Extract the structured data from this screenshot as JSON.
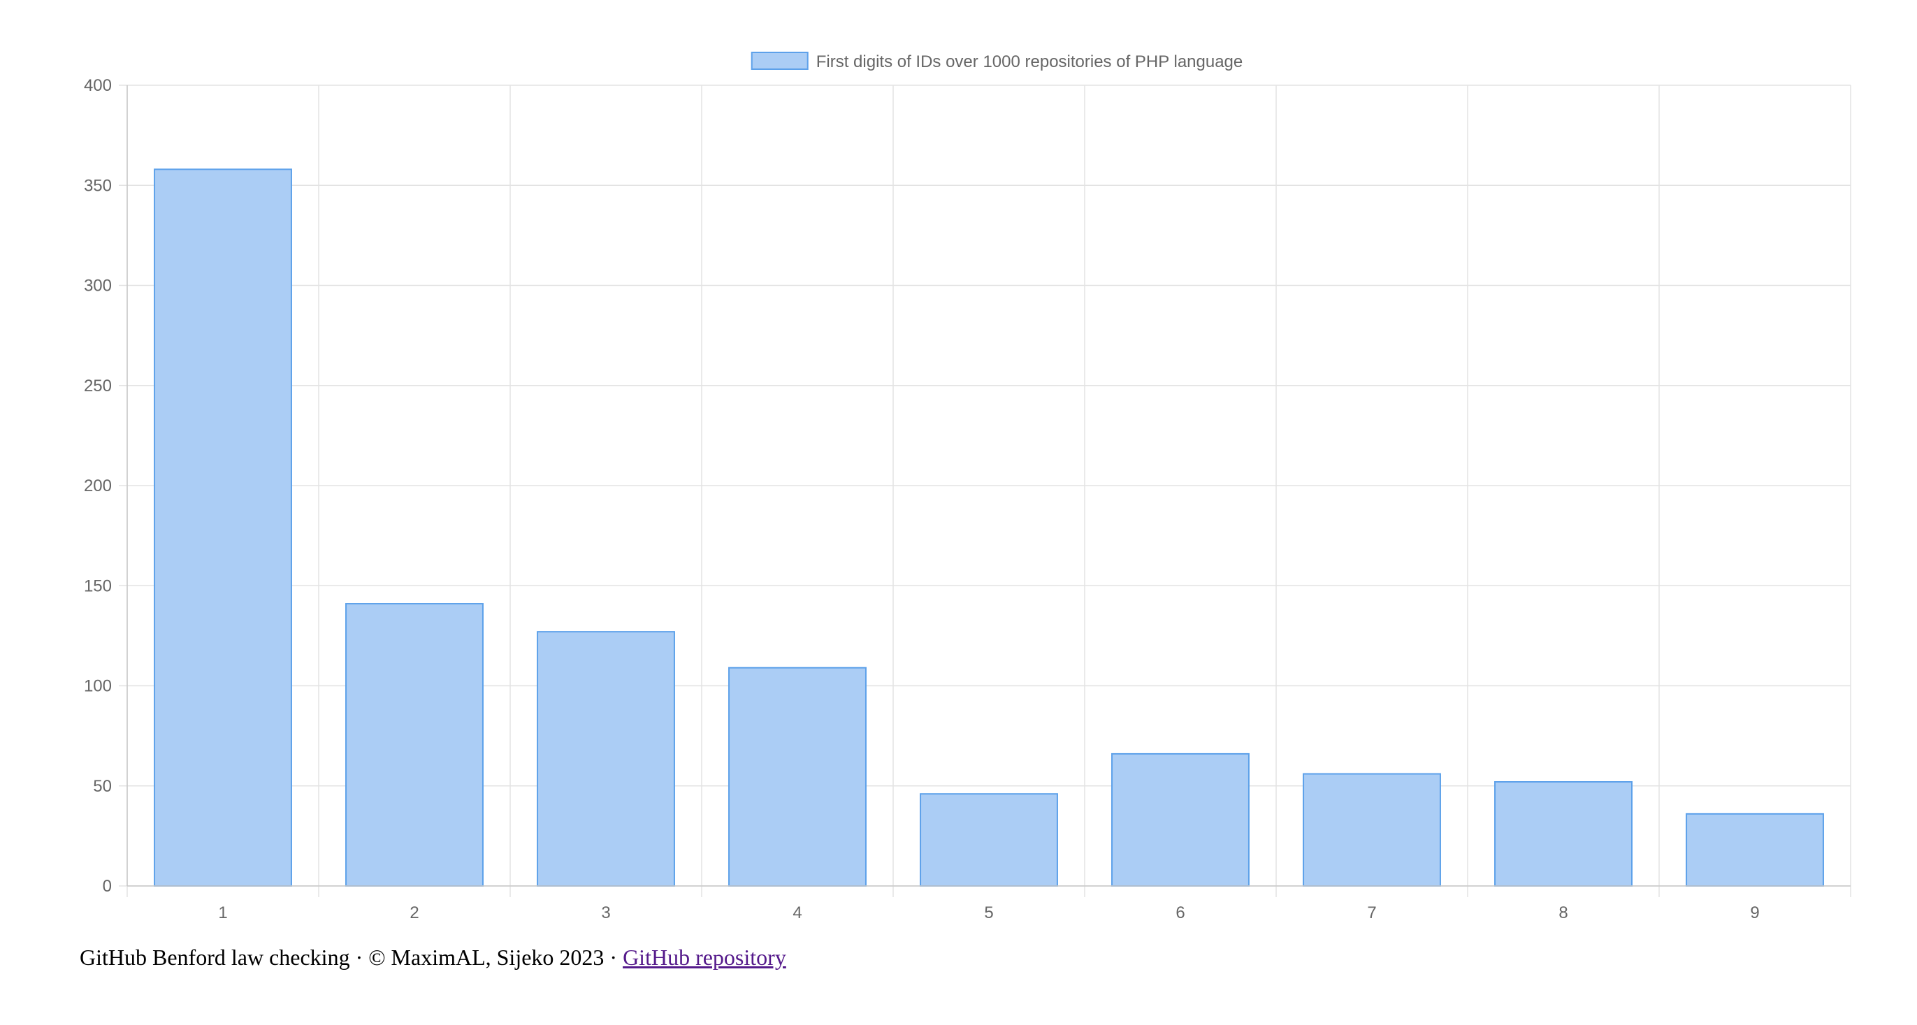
{
  "chart_data": {
    "type": "bar",
    "categories": [
      "1",
      "2",
      "3",
      "4",
      "5",
      "6",
      "7",
      "8",
      "9"
    ],
    "series": [
      {
        "name": "First digits of IDs over 1000 repositories of PHP language",
        "values": [
          358,
          141,
          127,
          109,
          46,
          66,
          56,
          52,
          36
        ]
      }
    ],
    "y_ticks": [
      "0",
      "50",
      "100",
      "150",
      "200",
      "250",
      "300",
      "350",
      "400"
    ],
    "ylim": [
      0,
      400
    ],
    "grid": true,
    "legend_position": "top-center",
    "colors": {
      "bar_fill": "#abcdf5",
      "bar_stroke": "#5da1ea",
      "grid": "#e3e3e3",
      "axis": "#c8c8c8",
      "tick_text": "#666666"
    }
  },
  "footer": {
    "text": "GitHub Benford law checking · © MaximAL, Sijeko 2023 · ",
    "link_label": "GitHub repository"
  }
}
